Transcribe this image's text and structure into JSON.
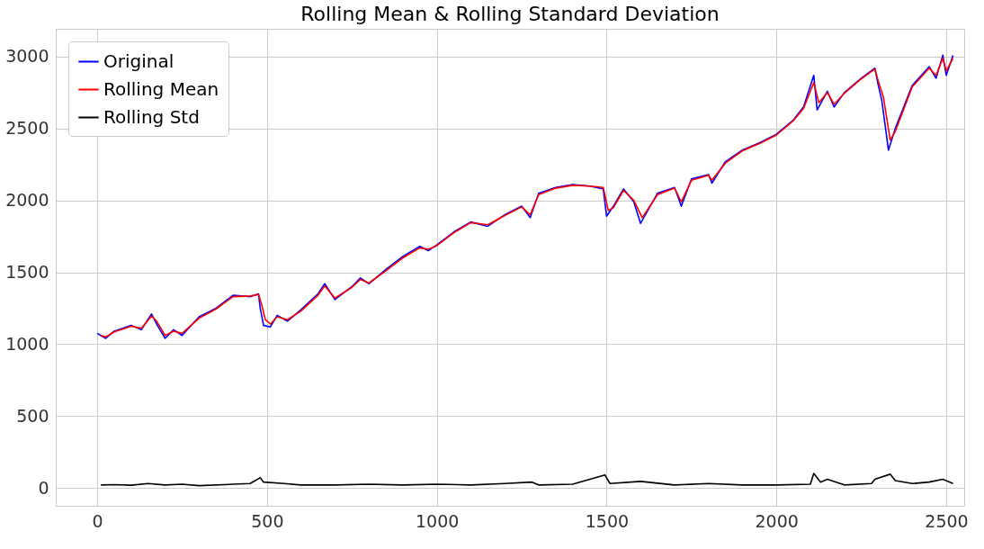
{
  "chart_data": {
    "type": "line",
    "title": "Rolling Mean & Rolling Standard Deviation",
    "xlim": [
      -122,
      2553
    ],
    "xticks": [
      0,
      500,
      1000,
      1500,
      2000,
      2500
    ],
    "ylim": [
      -125,
      3194
    ],
    "yticks": [
      0,
      500,
      1000,
      1500,
      2000,
      2500,
      3000
    ],
    "grid": true,
    "legend": "top left",
    "line_style": "solid",
    "series": [
      {
        "name": "Original",
        "color": "#0000ff",
        "x": [
          0,
          25,
          50,
          100,
          130,
          160,
          175,
          200,
          225,
          250,
          300,
          350,
          400,
          450,
          475,
          480,
          490,
          510,
          530,
          560,
          600,
          650,
          670,
          700,
          750,
          775,
          800,
          850,
          900,
          950,
          975,
          1000,
          1050,
          1100,
          1150,
          1200,
          1250,
          1275,
          1300,
          1350,
          1400,
          1450,
          1490,
          1500,
          1520,
          1550,
          1580,
          1600,
          1650,
          1700,
          1720,
          1750,
          1800,
          1810,
          1850,
          1900,
          1950,
          2000,
          2050,
          2080,
          2110,
          2120,
          2150,
          2170,
          2200,
          2250,
          2290,
          2300,
          2310,
          2330,
          2350,
          2400,
          2450,
          2470,
          2490,
          2500,
          2520
        ],
        "values": [
          1075,
          1040,
          1090,
          1130,
          1100,
          1210,
          1140,
          1040,
          1100,
          1060,
          1190,
          1250,
          1340,
          1330,
          1350,
          1250,
          1130,
          1120,
          1200,
          1160,
          1240,
          1350,
          1420,
          1310,
          1400,
          1460,
          1420,
          1520,
          1610,
          1680,
          1650,
          1690,
          1780,
          1850,
          1820,
          1900,
          1960,
          1880,
          2050,
          2090,
          2110,
          2100,
          2080,
          1890,
          1960,
          2080,
          1990,
          1840,
          2050,
          2090,
          1960,
          2150,
          2180,
          2120,
          2270,
          2350,
          2400,
          2460,
          2560,
          2650,
          2870,
          2630,
          2760,
          2650,
          2750,
          2850,
          2920,
          2800,
          2700,
          2350,
          2500,
          2800,
          2930,
          2850,
          3010,
          2870,
          3010
        ]
      },
      {
        "name": "Rolling Mean",
        "color": "#ff0000",
        "x": [
          11,
          25,
          50,
          100,
          130,
          160,
          175,
          200,
          225,
          250,
          300,
          350,
          400,
          450,
          475,
          485,
          495,
          510,
          530,
          560,
          600,
          650,
          670,
          700,
          750,
          775,
          800,
          850,
          900,
          950,
          975,
          1000,
          1050,
          1100,
          1150,
          1200,
          1250,
          1275,
          1300,
          1350,
          1400,
          1450,
          1490,
          1505,
          1520,
          1550,
          1580,
          1605,
          1650,
          1700,
          1720,
          1750,
          1800,
          1810,
          1850,
          1900,
          1950,
          2000,
          2050,
          2080,
          2110,
          2125,
          2150,
          2170,
          2200,
          2250,
          2290,
          2300,
          2315,
          2335,
          2350,
          2400,
          2450,
          2470,
          2490,
          2500,
          2520
        ],
        "values": [
          1060,
          1050,
          1085,
          1125,
          1110,
          1195,
          1160,
          1060,
          1090,
          1075,
          1180,
          1245,
          1330,
          1335,
          1345,
          1270,
          1170,
          1140,
          1190,
          1170,
          1230,
          1340,
          1405,
          1320,
          1395,
          1450,
          1425,
          1510,
          1600,
          1670,
          1660,
          1685,
          1775,
          1845,
          1830,
          1895,
          1955,
          1900,
          2040,
          2085,
          2105,
          2100,
          2090,
          1930,
          1950,
          2070,
          2000,
          1880,
          2040,
          2085,
          1990,
          2140,
          2175,
          2140,
          2260,
          2345,
          2395,
          2455,
          2555,
          2640,
          2820,
          2680,
          2750,
          2670,
          2745,
          2845,
          2915,
          2830,
          2720,
          2420,
          2480,
          2790,
          2920,
          2870,
          2990,
          2900,
          2990
        ]
      },
      {
        "name": "Rolling Std",
        "color": "#000000",
        "x": [
          11,
          50,
          100,
          150,
          200,
          250,
          300,
          400,
          450,
          480,
          490,
          550,
          600,
          700,
          800,
          900,
          1000,
          1100,
          1200,
          1280,
          1300,
          1400,
          1495,
          1510,
          1600,
          1700,
          1800,
          1900,
          2000,
          2100,
          2110,
          2130,
          2150,
          2200,
          2280,
          2290,
          2335,
          2350,
          2400,
          2450,
          2490,
          2520
        ],
        "values": [
          20,
          22,
          18,
          30,
          20,
          25,
          15,
          25,
          30,
          70,
          40,
          30,
          20,
          20,
          25,
          20,
          25,
          20,
          30,
          40,
          20,
          25,
          90,
          30,
          45,
          20,
          30,
          20,
          20,
          25,
          100,
          40,
          60,
          20,
          30,
          60,
          95,
          50,
          30,
          40,
          60,
          30
        ]
      }
    ]
  }
}
